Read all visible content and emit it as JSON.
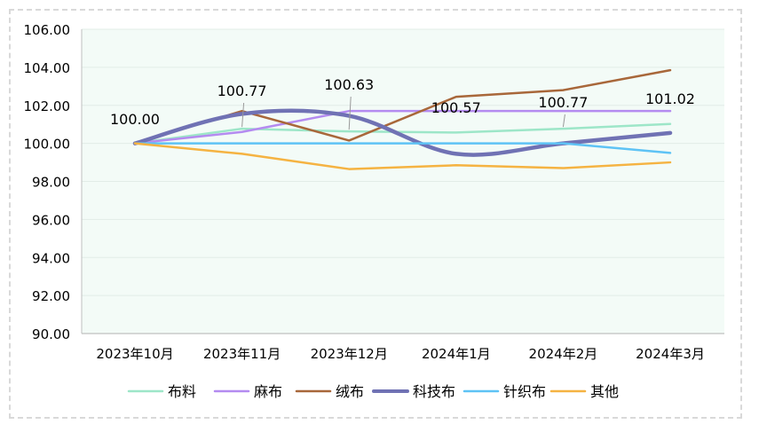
{
  "chart_data": {
    "type": "line",
    "title": "",
    "xlabel": "",
    "ylabel": "",
    "categories": [
      "2023年10月",
      "2023年11月",
      "2023年12月",
      "2024年1月",
      "2024年2月",
      "2024年3月"
    ],
    "ylim": [
      90,
      106
    ],
    "yticks": [
      "90.00",
      "92.00",
      "94.00",
      "96.00",
      "98.00",
      "100.00",
      "102.00",
      "104.00",
      "106.00"
    ],
    "grid": true,
    "legend_position": "bottom",
    "series": [
      {
        "name": "布料",
        "color": "#9de6c8",
        "width": 2.5,
        "smooth": false,
        "values": [
          100.0,
          100.77,
          100.63,
          100.57,
          100.77,
          101.02
        ]
      },
      {
        "name": "麻布",
        "color": "#b48bf0",
        "width": 2.5,
        "smooth": false,
        "values": [
          100.0,
          100.6,
          101.7,
          101.7,
          101.7,
          101.7
        ]
      },
      {
        "name": "绒布",
        "color": "#a8673a",
        "width": 2.5,
        "smooth": false,
        "values": [
          100.0,
          101.7,
          100.15,
          102.45,
          102.8,
          103.85
        ]
      },
      {
        "name": "科技布",
        "color": "#7072b4",
        "width": 4.5,
        "smooth": true,
        "values": [
          100.0,
          101.55,
          101.45,
          99.45,
          100.0,
          100.55
        ]
      },
      {
        "name": "针织布",
        "color": "#5ec3f5",
        "width": 2.5,
        "smooth": false,
        "values": [
          100.0,
          100.0,
          100.0,
          100.0,
          100.0,
          99.5
        ]
      },
      {
        "name": "其他",
        "color": "#f5b342",
        "width": 2.5,
        "smooth": false,
        "values": [
          100.0,
          99.45,
          98.65,
          98.85,
          98.7,
          99.0
        ]
      }
    ],
    "data_labels": [
      {
        "category_index": 0,
        "text": "100.00",
        "leader": false
      },
      {
        "category_index": 1,
        "text": "100.77",
        "leader": true
      },
      {
        "category_index": 2,
        "text": "100.63",
        "leader": true
      },
      {
        "category_index": 3,
        "text": "100.57",
        "leader": false
      },
      {
        "category_index": 4,
        "text": "100.77",
        "leader": true
      },
      {
        "category_index": 5,
        "text": "101.02",
        "leader": false
      }
    ],
    "colors": {
      "plot_background": "#f3fbf7",
      "gridline": "#e2ece7",
      "axis": "#bfbfbf",
      "text": "#000000",
      "leader_line": "#999999"
    }
  }
}
